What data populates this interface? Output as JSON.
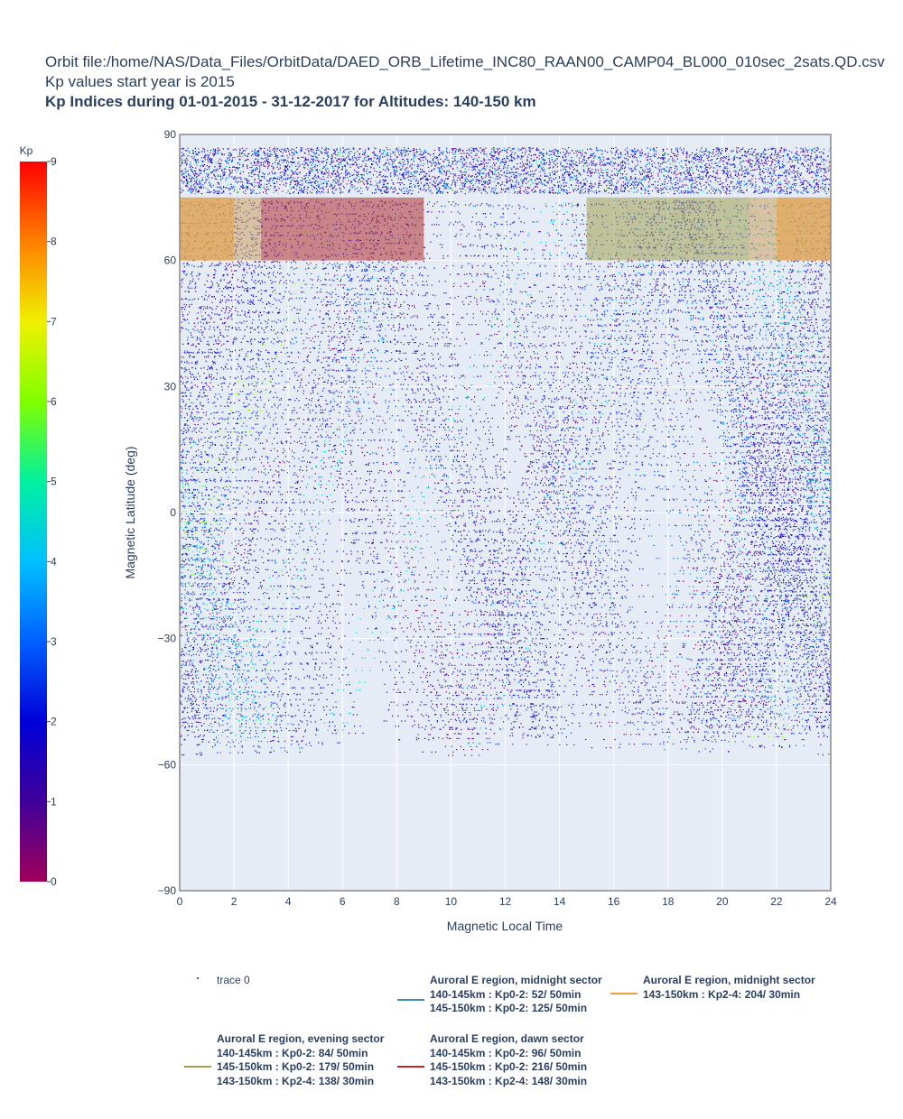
{
  "title": {
    "line1": "Orbit file:/home/NAS/Data_Files/OrbitData/DAED_ORB_Lifetime_INC80_RAAN00_CAMP04_BL000_010sec_2sats.QD.csv",
    "line2": "Kp values start year is 2015",
    "line3": "Kp Indices during 01-01-2015 - 31-12-2017 for Altitudes: 140-150 km"
  },
  "chart_data": {
    "type": "scatter",
    "xlabel": "Magnetic Local Time",
    "ylabel": "Magnetic Latitude (deg)",
    "xlim": [
      0,
      24
    ],
    "ylim": [
      -90,
      90
    ],
    "x_ticks": [
      0,
      2,
      4,
      6,
      8,
      10,
      12,
      14,
      16,
      18,
      20,
      22,
      24
    ],
    "y_ticks": [
      -90,
      -60,
      -30,
      0,
      30,
      60,
      90
    ],
    "y_tick_labels": [
      "−90",
      "−60",
      "−30",
      "0",
      "30",
      "60",
      "90"
    ],
    "colorbar": {
      "title": "Kp",
      "range": [
        0,
        9
      ],
      "ticks": [
        0,
        1,
        2,
        3,
        4,
        5,
        6,
        7,
        8,
        9
      ],
      "colors": [
        "#a0005a",
        "#40009a",
        "#0000d8",
        "#0060ff",
        "#00c0ff",
        "#00f0a0",
        "#80ff00",
        "#f0f000",
        "#ff8000",
        "#ff0000"
      ]
    },
    "regions": [
      {
        "name": "Auroral E region, midnight sector Kp0-2",
        "x": [
          21,
          24
        ],
        "y": [
          60,
          75
        ],
        "color": "#cca060"
      },
      {
        "name": "Auroral E region, midnight sector Kp0-2",
        "x": [
          0,
          3
        ],
        "y": [
          60,
          75
        ],
        "color": "#cca060"
      },
      {
        "name": "Auroral E region, midnight sector Kp2-4",
        "x": [
          22,
          24
        ],
        "y": [
          60,
          75
        ],
        "color": "#e8a040"
      },
      {
        "name": "Auroral E region, midnight sector Kp2-4",
        "x": [
          0,
          2
        ],
        "y": [
          60,
          75
        ],
        "color": "#e8a040"
      },
      {
        "name": "Auroral E region, evening sector",
        "x": [
          15,
          21
        ],
        "y": [
          60,
          75
        ],
        "color": "#a0a050"
      },
      {
        "name": "Auroral E region, dawn sector",
        "x": [
          3,
          9
        ],
        "y": [
          60,
          75
        ],
        "color": "#b03030"
      }
    ],
    "series": [
      {
        "name": "trace 0",
        "mode": "markers",
        "colorscale": "Kp"
      }
    ]
  },
  "legend": {
    "trace0": "trace 0",
    "midnight1": {
      "head": "Auroral E region, midnight sector",
      "lines": [
        "140-145km : Kp0-2:  52/ 50min",
        "145-150km : Kp0-2: 125/ 50min"
      ],
      "color": "#3d8fa8"
    },
    "midnight2": {
      "head": "Auroral E region, midnight sector",
      "lines": [
        "143-150km : Kp2-4: 204/ 30min"
      ],
      "color": "#e8a040"
    },
    "evening": {
      "head": "Auroral E region, evening sector",
      "lines": [
        "140-145km : Kp0-2:  84/ 50min",
        "145-150km : Kp0-2: 179/ 50min",
        "143-150km : Kp2-4: 138/ 30min"
      ],
      "color": "#a0a050"
    },
    "dawn": {
      "head": "Auroral E region, dawn sector",
      "lines": [
        "140-145km : Kp0-2:  96/ 50min",
        "145-150km : Kp0-2: 216/ 50min",
        "143-150km : Kp2-4: 148/ 30min"
      ],
      "color": "#c02828"
    }
  }
}
